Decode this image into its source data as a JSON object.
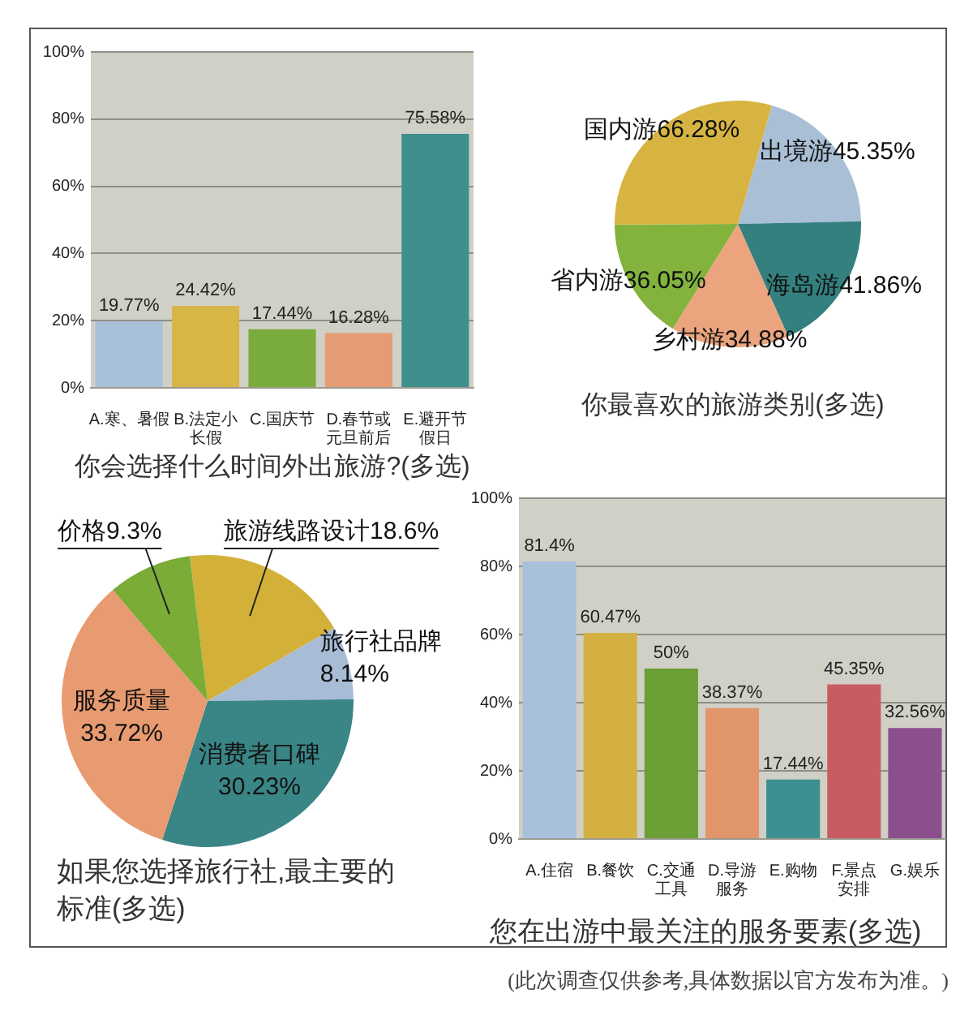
{
  "chart_data": [
    {
      "type": "bar",
      "title": "你会选择什么时间外出旅游?(多选)",
      "categories": [
        "A.寒、暑假",
        "B.法定小长假",
        "C.国庆节",
        "D.春节或元旦前后",
        "E.避开节假日"
      ],
      "values": [
        19.77,
        24.42,
        17.44,
        16.28,
        75.58
      ],
      "colors": [
        "#a9c0da",
        "#d7b546",
        "#79ab3d",
        "#e59b73",
        "#3f8f8d"
      ],
      "value_labels": [
        "19.77%",
        "24.42%",
        "17.44%",
        "16.28%",
        "75.58%"
      ],
      "ylim": [
        0,
        100
      ],
      "yticks": [
        {
          "value": 0,
          "label": "0%"
        },
        {
          "value": 20,
          "label": "20%"
        },
        {
          "value": 40,
          "label": "40%"
        },
        {
          "value": 60,
          "label": "60%"
        },
        {
          "value": 80,
          "label": "80%"
        },
        {
          "value": 100,
          "label": "100%"
        }
      ],
      "grid": "y"
    },
    {
      "type": "pie",
      "title": "你最喜欢的旅游类别(多选)",
      "categories": [
        "出境游",
        "海岛游",
        "乡村游",
        "省内游",
        "国内游"
      ],
      "values": [
        45.35,
        41.86,
        34.88,
        36.05,
        66.28
      ],
      "colors": [
        "#a9bfd6",
        "#33807f",
        "#eba47e",
        "#83b23d",
        "#d7b442"
      ],
      "value_labels": [
        "45.35%",
        "41.86%",
        "34.88%",
        "36.05%",
        "66.28%"
      ]
    },
    {
      "type": "pie",
      "title": "如果您选择旅行社,最主要的标准(多选)",
      "categories": [
        "旅游线路设计",
        "旅行社品牌",
        "消费者口碑",
        "服务质量",
        "价格"
      ],
      "values": [
        18.6,
        8.14,
        30.23,
        33.72,
        9.3
      ],
      "colors": [
        "#d3b138",
        "#a8bcd6",
        "#3a8585",
        "#e89a70",
        "#7aac37"
      ],
      "value_labels": [
        "18.6%",
        "8.14%",
        "30.23%",
        "33.72%",
        "9.3%"
      ]
    },
    {
      "type": "bar",
      "title": "您在出游中最关注的服务要素(多选)",
      "categories": [
        "A.住宿",
        "B.餐饮",
        "C.交通工具",
        "D.导游服务",
        "E.购物",
        "F.景点安排",
        "G.娱乐"
      ],
      "values": [
        81.4,
        60.47,
        50,
        38.37,
        17.44,
        45.35,
        32.56
      ],
      "colors": [
        "#a9c0dc",
        "#d4b043",
        "#6b9f35",
        "#e0956a",
        "#3c9090",
        "#c95c62",
        "#8b4f8e"
      ],
      "value_labels": [
        "81.4%",
        "60.47%",
        "50%",
        "38.37%",
        "17.44%",
        "45.35%",
        "32.56%"
      ],
      "ylim": [
        0,
        100
      ],
      "yticks": [
        {
          "value": 0,
          "label": "0%"
        },
        {
          "value": 20,
          "label": "20%"
        },
        {
          "value": 40,
          "label": "40%"
        },
        {
          "value": 60,
          "label": "60%"
        },
        {
          "value": 80,
          "label": "80%"
        },
        {
          "value": 100,
          "label": "100%"
        }
      ],
      "grid": "y",
      "annotations": [
        "(此次调查仅供参考,具体数据以官方发布为准。)"
      ]
    }
  ]
}
